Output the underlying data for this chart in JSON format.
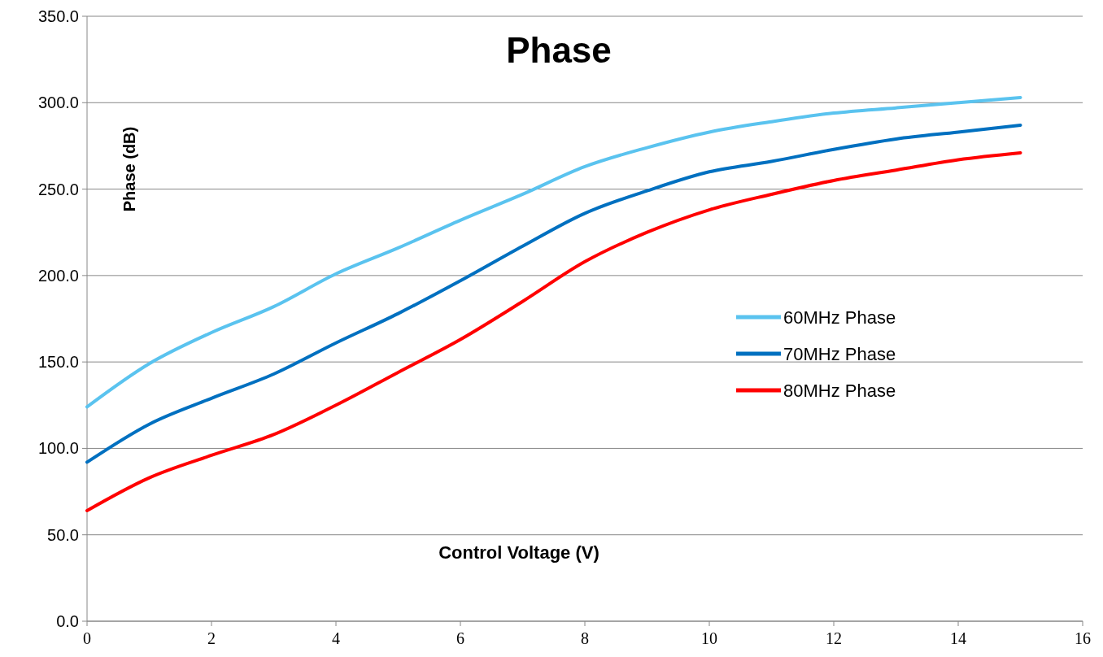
{
  "chart_data": {
    "type": "line",
    "title": "Phase",
    "xlabel": "Control Voltage (V)",
    "ylabel": "Phase (dB)",
    "x": [
      0,
      1,
      2,
      3,
      4,
      5,
      6,
      7,
      8,
      9,
      10,
      11,
      12,
      13,
      14,
      15
    ],
    "series": [
      {
        "name": "60MHz Phase",
        "color": "#5ac3ef",
        "values": [
          124,
          149,
          167,
          182,
          201,
          216,
          232,
          247,
          263,
          274,
          283,
          289,
          294,
          297,
          300,
          303
        ]
      },
      {
        "name": "70MHz Phase",
        "color": "#0070c0",
        "values": [
          92,
          114,
          129,
          143,
          161,
          178,
          197,
          217,
          236,
          249,
          260,
          266,
          273,
          279,
          283,
          287
        ]
      },
      {
        "name": "80MHz Phase",
        "color": "#ff0000",
        "values": [
          64,
          83,
          96,
          108,
          125,
          144,
          163,
          185,
          208,
          225,
          238,
          247,
          255,
          261,
          267,
          271
        ]
      }
    ],
    "xlim": [
      0,
      16
    ],
    "xticks": [
      0,
      2,
      4,
      6,
      8,
      10,
      12,
      14,
      16
    ],
    "ylim": [
      0,
      350
    ],
    "yticks": [
      {
        "value": 0,
        "label": "0.0"
      },
      {
        "value": 50,
        "label": "50.0"
      },
      {
        "value": 100,
        "label": "100.0"
      },
      {
        "value": 150,
        "label": "150.0"
      },
      {
        "value": 200,
        "label": "200.0"
      },
      {
        "value": 250,
        "label": "250.0"
      },
      {
        "value": 300,
        "label": "300.0"
      },
      {
        "value": 350,
        "label": "350.0"
      }
    ],
    "grid": "y",
    "legend": "right",
    "marker": "none",
    "line_style": "solid"
  }
}
